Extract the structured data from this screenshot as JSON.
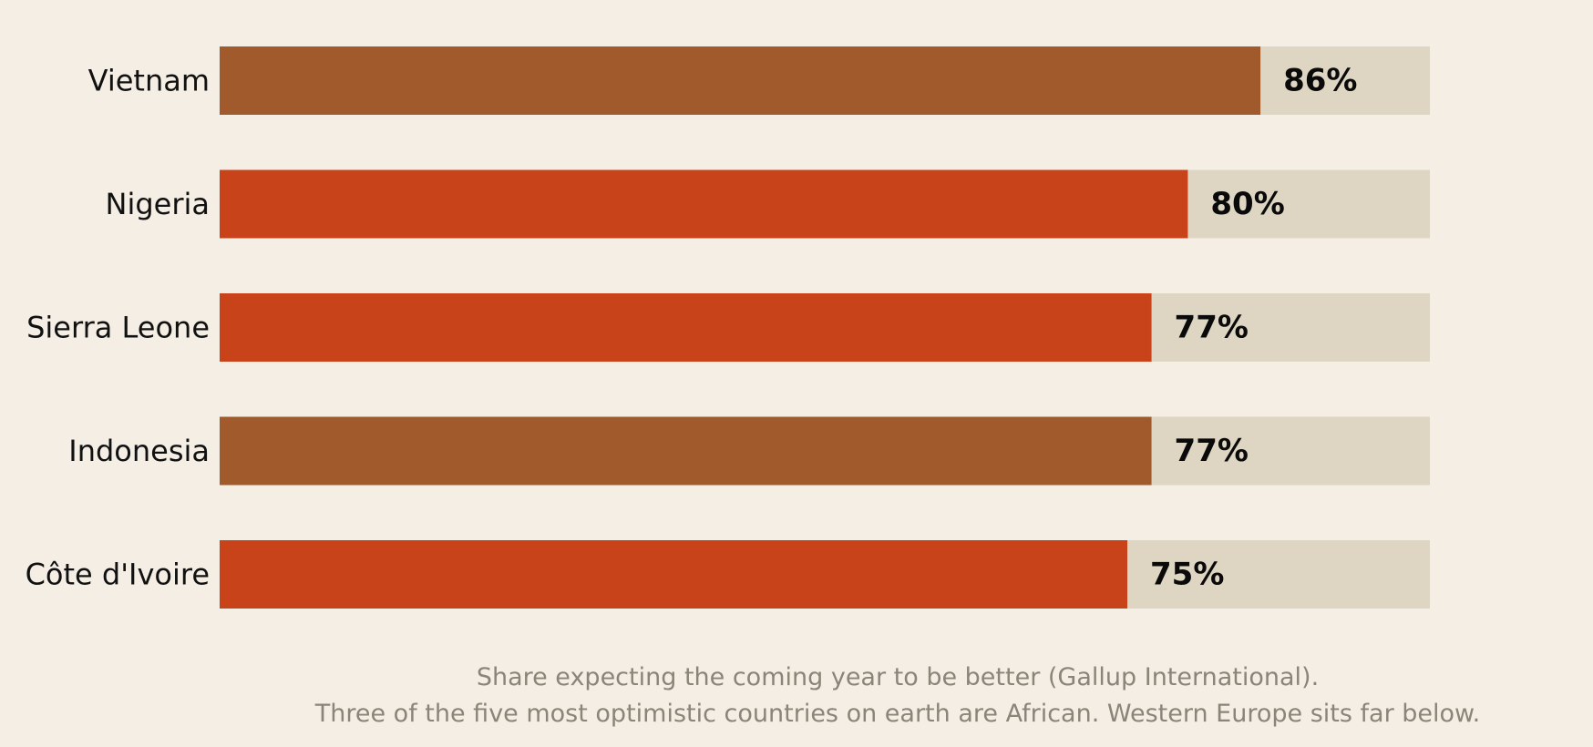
{
  "chart_data": {
    "type": "bar",
    "orientation": "horizontal",
    "categories": [
      "Vietnam",
      "Nigeria",
      "Sierra Leone",
      "Indonesia",
      "Côte d'Ivoire"
    ],
    "values": [
      86,
      80,
      77,
      77,
      75
    ],
    "value_labels": [
      "86%",
      "80%",
      "77%",
      "77%",
      "75%"
    ],
    "african": [
      false,
      true,
      true,
      false,
      true
    ],
    "xlim": [
      0,
      100
    ],
    "title": "",
    "xlabel": "",
    "ylabel": "",
    "grid": false,
    "legend": "none"
  },
  "colors": {
    "background": "#f4eee5",
    "track": "#ded5c3",
    "african_bar": "#c8431a",
    "other_bar": "#a05a2c",
    "caption": "#8a8576"
  },
  "caption": {
    "line1": "Share expecting the coming year to be better (Gallup International).",
    "line2": "Three of the five most optimistic countries on earth are African. Western Europe sits far below."
  }
}
